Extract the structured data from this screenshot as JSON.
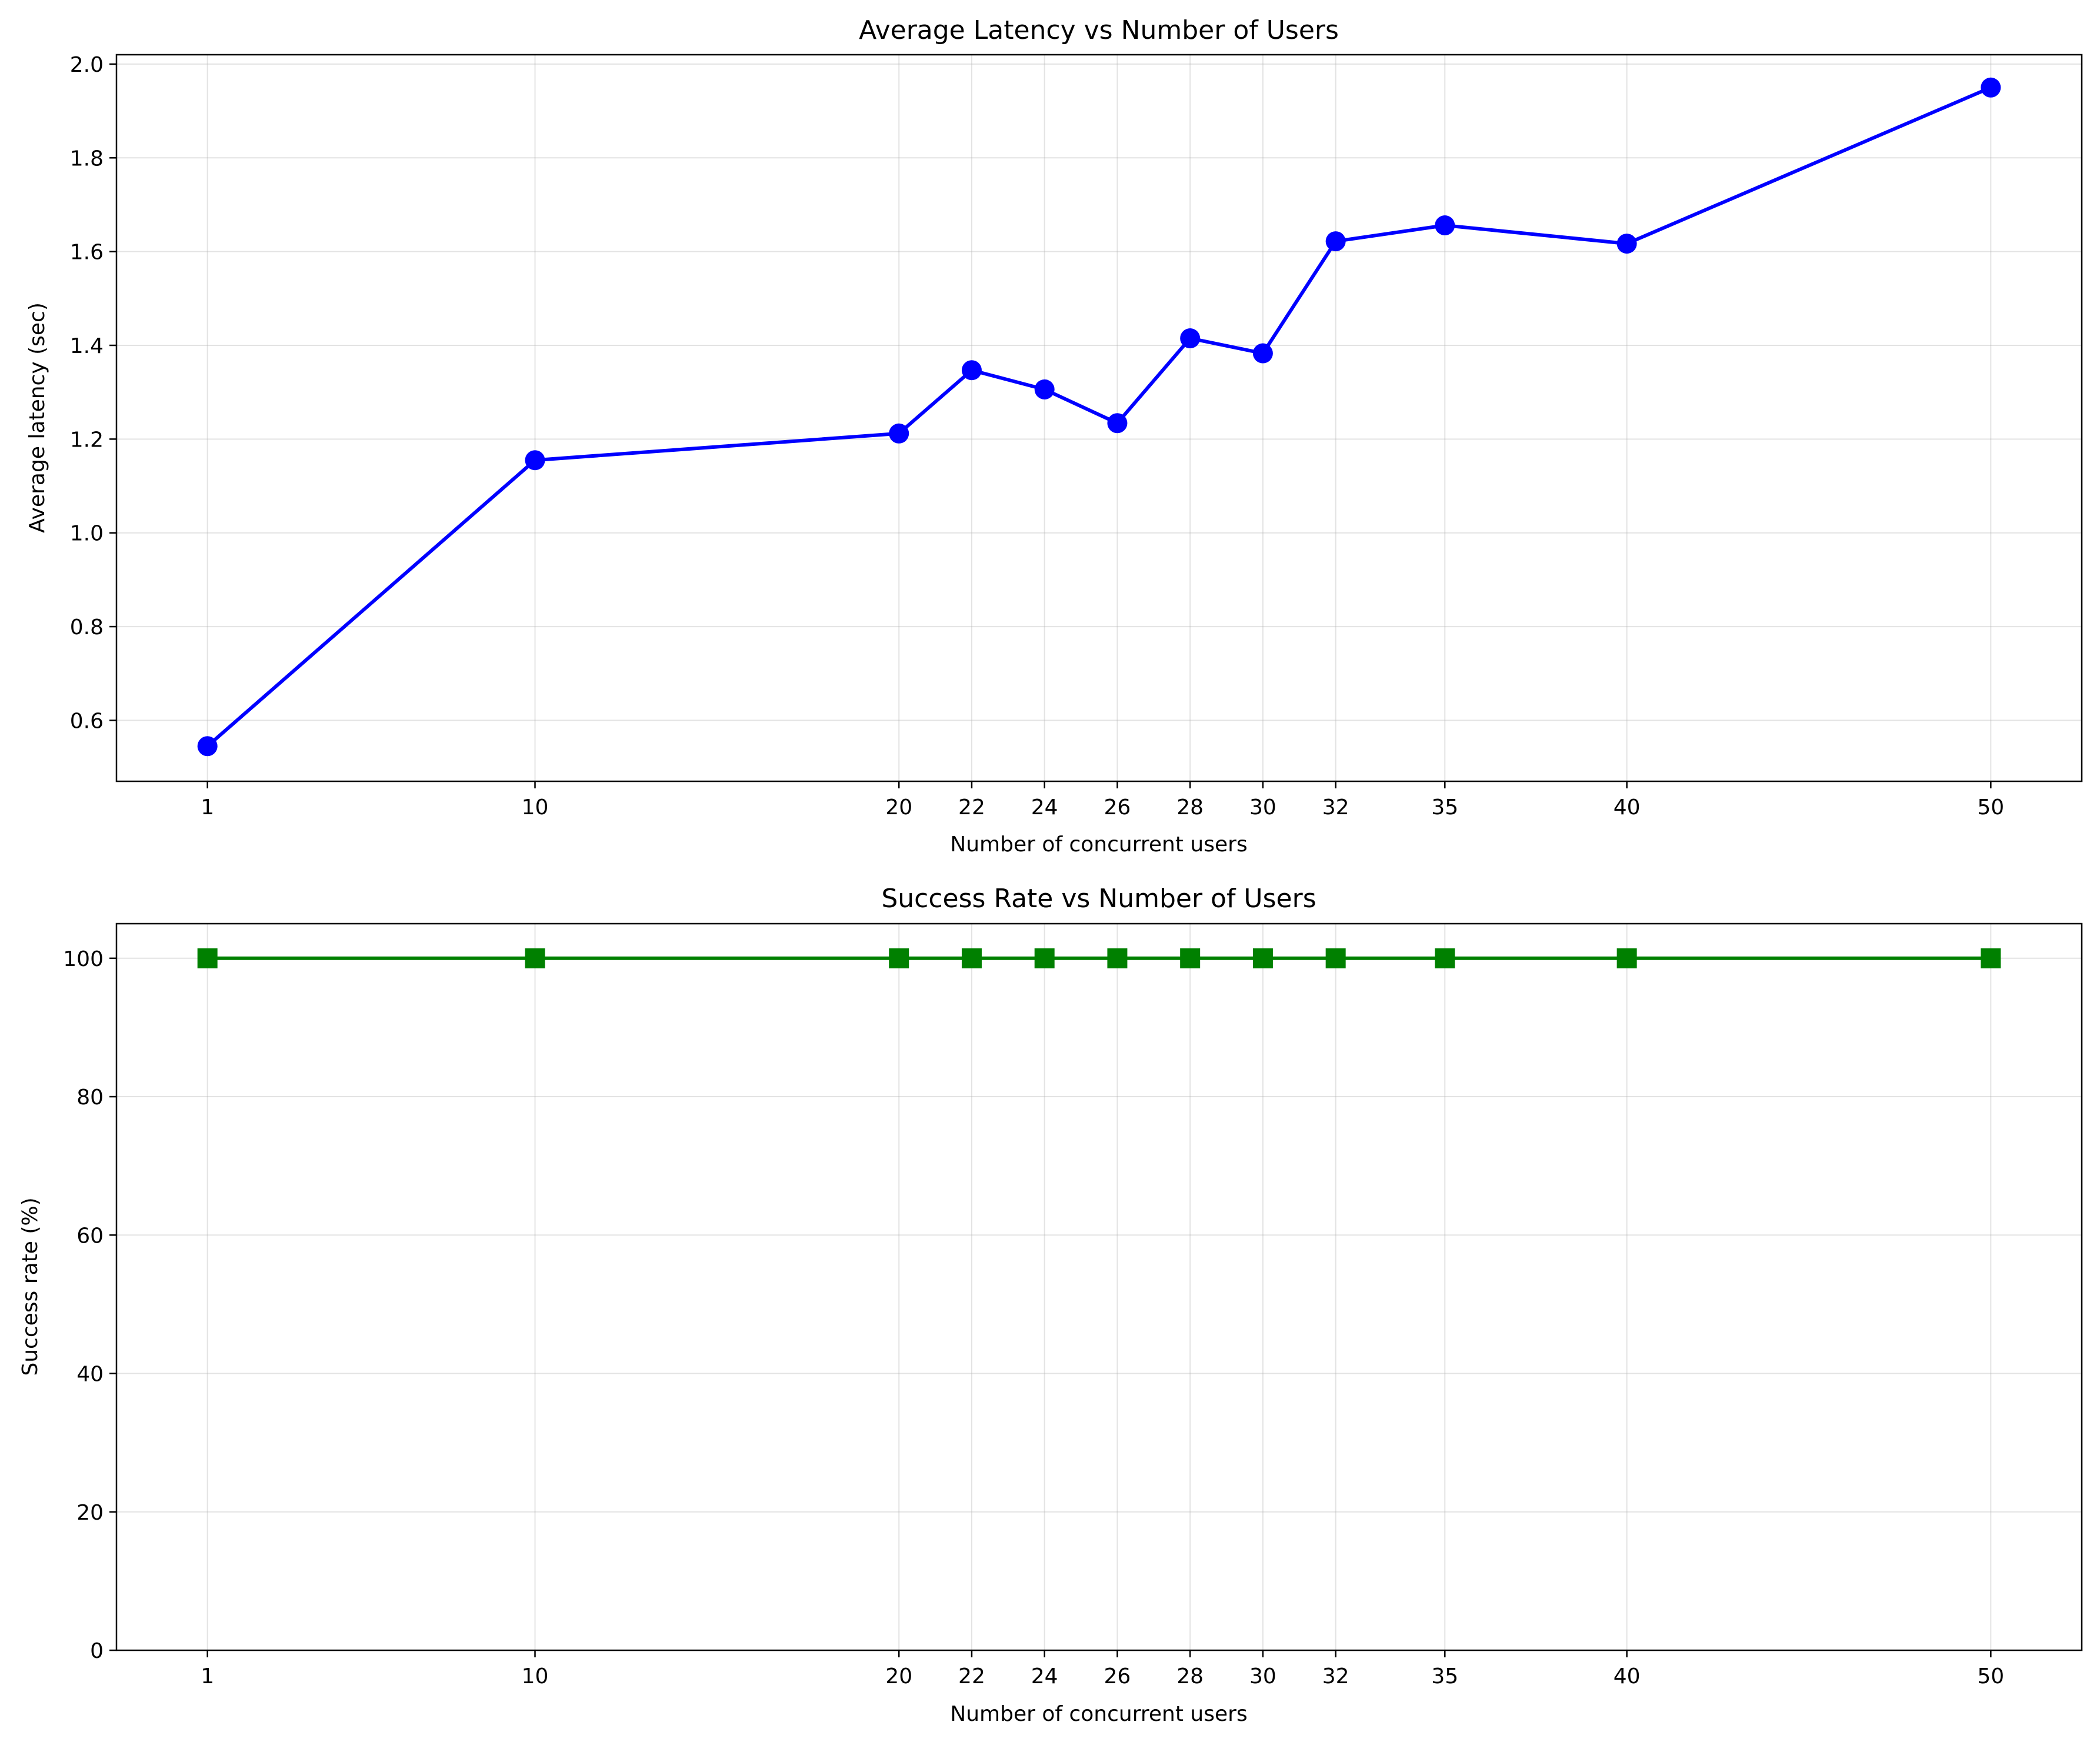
{
  "chart_data": [
    {
      "type": "line",
      "title": "Average Latency vs Number of Users",
      "xlabel": "Number of concurrent users",
      "ylabel": "Average latency (sec)",
      "x": [
        1,
        10,
        20,
        22,
        24,
        26,
        28,
        30,
        32,
        35,
        40,
        50
      ],
      "x_ticks": [
        "1",
        "10",
        "20",
        "22",
        "24",
        "26",
        "28",
        "30",
        "32",
        "35",
        "40",
        "50"
      ],
      "series": [
        {
          "values": [
            0.545,
            1.155,
            1.212,
            1.347,
            1.306,
            1.234,
            1.415,
            1.383,
            1.622,
            1.656,
            1.617,
            1.95
          ],
          "color": "#0000ff",
          "marker": "circle"
        }
      ],
      "xlim": [
        -1.5,
        52.5
      ],
      "ylim": [
        0.47,
        2.02
      ],
      "y_ticks": [
        "0.6",
        "0.8",
        "1.0",
        "1.2",
        "1.4",
        "1.6",
        "1.8",
        "2.0"
      ],
      "y_tick_values": [
        0.6,
        0.8,
        1.0,
        1.2,
        1.4,
        1.6,
        1.8,
        2.0
      ],
      "grid": true
    },
    {
      "type": "line",
      "title": "Success Rate vs Number of Users",
      "xlabel": "Number of concurrent users",
      "ylabel": "Success rate (%)",
      "x": [
        1,
        10,
        20,
        22,
        24,
        26,
        28,
        30,
        32,
        35,
        40,
        50
      ],
      "x_ticks": [
        "1",
        "10",
        "20",
        "22",
        "24",
        "26",
        "28",
        "30",
        "32",
        "35",
        "40",
        "50"
      ],
      "series": [
        {
          "values": [
            100,
            100,
            100,
            100,
            100,
            100,
            100,
            100,
            100,
            100,
            100,
            100
          ],
          "color": "#008000",
          "marker": "square"
        }
      ],
      "xlim": [
        -1.5,
        52.5
      ],
      "ylim": [
        0,
        105
      ],
      "y_ticks": [
        "0",
        "20",
        "40",
        "60",
        "80",
        "100"
      ],
      "y_tick_values": [
        0,
        20,
        40,
        60,
        80,
        100
      ],
      "grid": true
    }
  ]
}
